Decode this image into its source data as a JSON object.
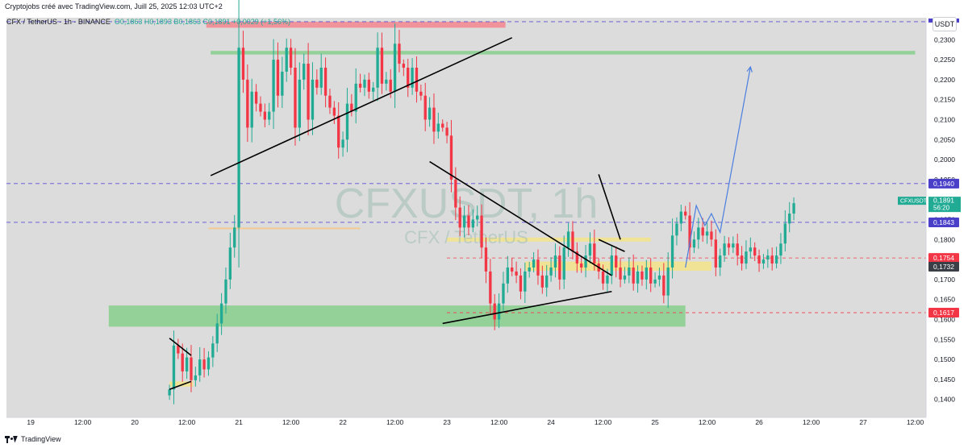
{
  "header": {
    "text": "Cryptojobs créé avec TradingView.com, Juill 25, 2025 12:03 UTC+2"
  },
  "legend": {
    "symbol": "CFX / TetherUS · 1h · BINANCE",
    "ohlc": "O0,1863 H0,1893 B0,1863 C0,1891 +0,0029 (+1,56%)"
  },
  "currency_button": "USDT",
  "watermark": {
    "ticker": "CFXUSDT, 1h",
    "name": "CFX / TetherUS"
  },
  "footer": {
    "brand": "TradingView"
  },
  "colors": {
    "up": "#22ab94",
    "down": "#f23645",
    "supply_zone": "#f28b93",
    "demand_zone": "#8ccf91",
    "yellow_zone": "#f7e57d",
    "projection": "#4a7ee0",
    "trend_lines": "#000000"
  },
  "price_labels": [
    {
      "value": "0,1940",
      "kind": "dashed-purple",
      "price": 0.194
    },
    {
      "value": "CFXUSDT",
      "extra": "0,1891",
      "extra2": "56:20",
      "kind": "current",
      "price": 0.1891
    },
    {
      "value": "0,1843",
      "kind": "dashed-purple",
      "price": 0.1843
    },
    {
      "value": "0,1754",
      "kind": "red",
      "price": 0.1754
    },
    {
      "value": "0,1732",
      "kind": "dark",
      "price": 0.1732
    },
    {
      "value": "0,1617",
      "kind": "red",
      "price": 0.1617
    }
  ],
  "chart_data": {
    "type": "candlestick",
    "y_ticks": [
      "0,2300",
      "0,2250",
      "0,2200",
      "0,2150",
      "0,2100",
      "0,2050",
      "0,2000",
      "0,1950",
      "0,1900",
      "0,1850",
      "0,1800",
      "0,1750",
      "0,1700",
      "0,1650",
      "0,1600",
      "0,1550",
      "0,1500",
      "0,1450",
      "0,1400"
    ],
    "y_tick_values": [
      0.23,
      0.225,
      0.22,
      0.215,
      0.21,
      0.205,
      0.2,
      0.195,
      0.19,
      0.185,
      0.18,
      0.175,
      0.17,
      0.165,
      0.16,
      0.155,
      0.15,
      0.145,
      0.14
    ],
    "x_ticks": [
      {
        "label": "19",
        "hour": 0
      },
      {
        "label": "12:00",
        "hour": 12
      },
      {
        "label": "20",
        "hour": 24
      },
      {
        "label": "12:00",
        "hour": 36
      },
      {
        "label": "21",
        "hour": 48
      },
      {
        "label": "12:00",
        "hour": 60
      },
      {
        "label": "22",
        "hour": 72
      },
      {
        "label": "12:00",
        "hour": 84
      },
      {
        "label": "23",
        "hour": 96
      },
      {
        "label": "12:00",
        "hour": 108
      },
      {
        "label": "24",
        "hour": 120
      },
      {
        "label": "12:00",
        "hour": 132
      },
      {
        "label": "25",
        "hour": 144
      },
      {
        "label": "12:00",
        "hour": 156
      },
      {
        "label": "26",
        "hour": 168
      },
      {
        "label": "12:00",
        "hour": 180
      },
      {
        "label": "27",
        "hour": 192
      },
      {
        "label": "12:00",
        "hour": 204
      }
    ],
    "ylim": [
      0.1355,
      0.2355
    ],
    "xlim": [
      -5.6,
      206.5
    ],
    "candles_start_hour": 32.0,
    "candle_closes": [
      0.1425,
      0.1535,
      0.1515,
      0.147,
      0.1505,
      0.1448,
      0.146,
      0.15,
      0.1475,
      0.1505,
      0.154,
      0.159,
      0.164,
      0.17,
      0.178,
      0.183,
      0.228,
      0.22,
      0.208,
      0.217,
      0.214,
      0.212,
      0.21,
      0.212,
      0.225,
      0.216,
      0.222,
      0.228,
      0.223,
      0.208,
      0.22,
      0.224,
      0.21,
      0.22,
      0.218,
      0.223,
      0.216,
      0.213,
      0.211,
      0.203,
      0.205,
      0.214,
      0.212,
      0.219,
      0.218,
      0.22,
      0.217,
      0.218,
      0.228,
      0.219,
      0.22,
      0.217,
      0.229,
      0.224,
      0.223,
      0.218,
      0.223,
      0.217,
      0.216,
      0.21,
      0.213,
      0.207,
      0.209,
      0.208,
      0.206,
      0.195,
      0.188,
      0.183,
      0.186,
      0.183,
      0.185,
      0.186,
      0.178,
      0.172,
      0.164,
      0.16,
      0.164,
      0.169,
      0.173,
      0.172,
      0.171,
      0.167,
      0.172,
      0.173,
      0.175,
      0.171,
      0.168,
      0.171,
      0.173,
      0.176,
      0.17,
      0.178,
      0.182,
      0.177,
      0.174,
      0.173,
      0.176,
      0.179,
      0.174,
      0.172,
      0.169,
      0.171,
      0.176,
      0.173,
      0.17,
      0.171,
      0.173,
      0.169,
      0.172,
      0.17,
      0.173,
      0.169,
      0.17,
      0.171,
      0.166,
      0.173,
      0.181,
      0.184,
      0.187,
      0.186,
      0.178,
      0.18,
      0.183,
      0.181,
      0.182,
      0.18,
      0.173,
      0.176,
      0.179,
      0.178,
      0.179,
      0.176,
      0.174,
      0.177,
      0.178,
      0.176,
      0.174,
      0.175,
      0.176,
      0.174,
      0.176,
      0.179,
      0.184,
      0.1865,
      0.1891
    ]
  },
  "zones": [
    {
      "name": "supply-zone",
      "h0": 40.5,
      "h1": 109.5,
      "p0": 0.2345,
      "p1": 0.233,
      "color": "red"
    },
    {
      "name": "upper-demand-zone",
      "h0": 41.5,
      "h1": 204,
      "p0": 0.2272,
      "p1": 0.2263,
      "color": "green"
    },
    {
      "name": "lower-demand-zone",
      "h0": 18,
      "h1": 151,
      "p0": 0.1635,
      "p1": 0.1582,
      "color": "green"
    },
    {
      "name": "mid-yellow-zone",
      "h0": 96,
      "h1": 143,
      "p0": 0.1805,
      "p1": 0.1795,
      "color": "yellow"
    },
    {
      "name": "right-yellow-zone",
      "h0": 114,
      "h1": 157,
      "p0": 0.1745,
      "p1": 0.1722,
      "color": "yellow"
    },
    {
      "name": "left-yellow-zone",
      "h0": 32,
      "h1": 37.5,
      "p0": 0.1445,
      "p1": 0.1432,
      "color": "yellow"
    },
    {
      "name": "orange-line",
      "h0": 41,
      "h1": 76,
      "p0": 0.183,
      "p1": 0.1826,
      "color": "orange"
    }
  ],
  "trendlines": [
    {
      "name": "rising-wedge-line",
      "h0": 41.5,
      "p0": 0.196,
      "h1": 111,
      "p1": 0.2305
    },
    {
      "name": "descending-line",
      "h0": 92,
      "p0": 0.1995,
      "h1": 134,
      "p1": 0.171
    },
    {
      "name": "rising-support-line",
      "h0": 95,
      "p0": 0.159,
      "h1": 134,
      "p1": 0.167
    },
    {
      "name": "small-flag-line",
      "h0": 131,
      "p0": 0.1963,
      "h1": 136,
      "p1": 0.18
    },
    {
      "name": "flag-lower-line",
      "h0": 131,
      "p0": 0.18,
      "h1": 137,
      "p1": 0.177
    },
    {
      "name": "mini-wedge-top",
      "h0": 32,
      "p0": 0.1553,
      "h1": 37,
      "p1": 0.151
    },
    {
      "name": "mini-wedge-bottom",
      "h0": 32,
      "p0": 0.1425,
      "h1": 37,
      "p1": 0.1445
    }
  ],
  "projection": [
    [
      151,
      0.173
    ],
    [
      153.5,
      0.1885
    ],
    [
      155.5,
      0.1835
    ],
    [
      157,
      0.1865
    ],
    [
      159,
      0.1818
    ],
    [
      166,
      0.2232
    ]
  ]
}
